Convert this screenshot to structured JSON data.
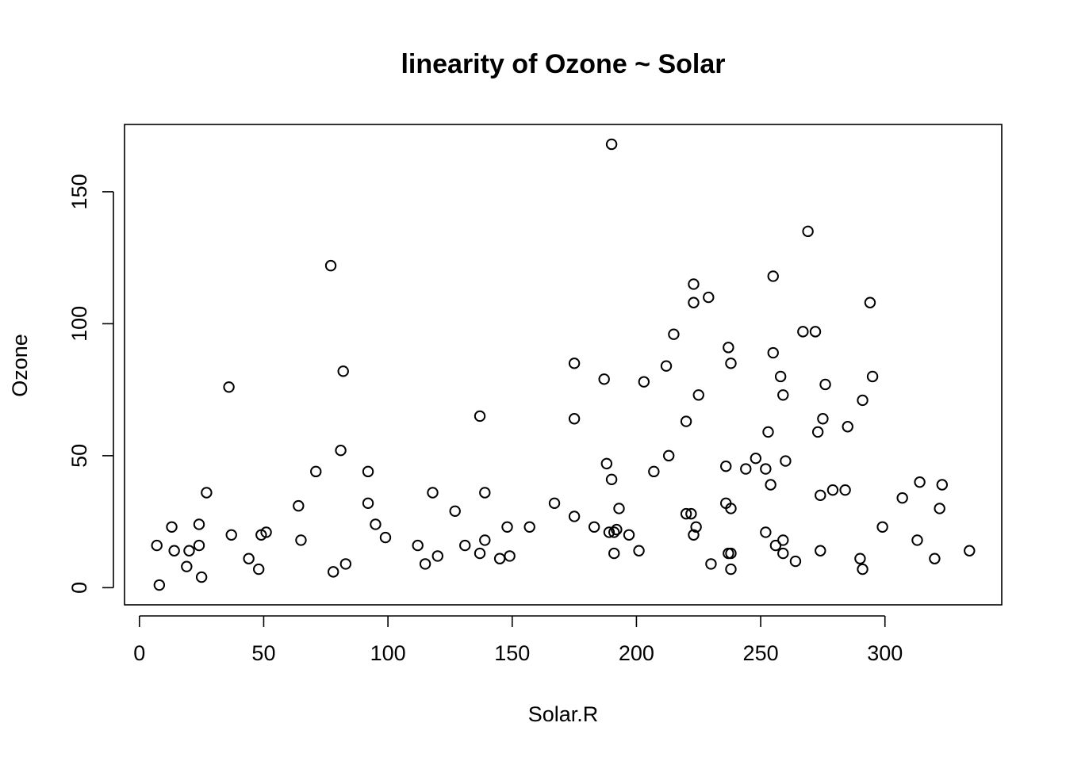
{
  "chart_data": {
    "type": "scatter",
    "title": "linearity of Ozone ~ Solar",
    "xlabel": "Solar.R",
    "ylabel": "Ozone",
    "xlim": [
      -6,
      347
    ],
    "ylim": [
      -6.5,
      175.5
    ],
    "xticks": [
      0,
      50,
      100,
      150,
      200,
      250,
      300
    ],
    "yticks": [
      0,
      50,
      100,
      150
    ],
    "grid": false,
    "marker": "open-circle",
    "points": [
      [
        190,
        41
      ],
      [
        118,
        36
      ],
      [
        149,
        12
      ],
      [
        313,
        18
      ],
      [
        299,
        23
      ],
      [
        99,
        19
      ],
      [
        19,
        8
      ],
      [
        256,
        16
      ],
      [
        290,
        11
      ],
      [
        274,
        14
      ],
      [
        65,
        18
      ],
      [
        334,
        14
      ],
      [
        307,
        34
      ],
      [
        78,
        6
      ],
      [
        322,
        30
      ],
      [
        44,
        11
      ],
      [
        8,
        1
      ],
      [
        320,
        11
      ],
      [
        25,
        4
      ],
      [
        92,
        32
      ],
      [
        13,
        23
      ],
      [
        252,
        45
      ],
      [
        223,
        115
      ],
      [
        279,
        37
      ],
      [
        127,
        29
      ],
      [
        291,
        71
      ],
      [
        323,
        39
      ],
      [
        148,
        23
      ],
      [
        191,
        21
      ],
      [
        284,
        37
      ],
      [
        37,
        20
      ],
      [
        120,
        12
      ],
      [
        137,
        13
      ],
      [
        269,
        135
      ],
      [
        248,
        49
      ],
      [
        236,
        32
      ],
      [
        175,
        64
      ],
      [
        314,
        40
      ],
      [
        276,
        77
      ],
      [
        267,
        97
      ],
      [
        272,
        97
      ],
      [
        175,
        85
      ],
      [
        139,
        36
      ],
      [
        264,
        10
      ],
      [
        175,
        27
      ],
      [
        291,
        7
      ],
      [
        48,
        7
      ],
      [
        260,
        48
      ],
      [
        274,
        35
      ],
      [
        285,
        61
      ],
      [
        187,
        79
      ],
      [
        220,
        63
      ],
      [
        7,
        16
      ],
      [
        258,
        80
      ],
      [
        295,
        80
      ],
      [
        294,
        108
      ],
      [
        223,
        20
      ],
      [
        81,
        52
      ],
      [
        82,
        82
      ],
      [
        213,
        50
      ],
      [
        275,
        64
      ],
      [
        253,
        59
      ],
      [
        254,
        39
      ],
      [
        83,
        9
      ],
      [
        24,
        16
      ],
      [
        77,
        122
      ],
      [
        255,
        89
      ],
      [
        229,
        110
      ],
      [
        207,
        44
      ],
      [
        222,
        28
      ],
      [
        137,
        65
      ],
      [
        192,
        22
      ],
      [
        273,
        59
      ],
      [
        157,
        23
      ],
      [
        64,
        31
      ],
      [
        71,
        44
      ],
      [
        51,
        21
      ],
      [
        115,
        9
      ],
      [
        244,
        45
      ],
      [
        190,
        168
      ],
      [
        259,
        73
      ],
      [
        36,
        76
      ],
      [
        255,
        118
      ],
      [
        212,
        84
      ],
      [
        238,
        85
      ],
      [
        215,
        96
      ],
      [
        203,
        78
      ],
      [
        225,
        73
      ],
      [
        237,
        91
      ],
      [
        188,
        47
      ],
      [
        167,
        32
      ],
      [
        197,
        20
      ],
      [
        183,
        23
      ],
      [
        189,
        21
      ],
      [
        95,
        24
      ],
      [
        92,
        44
      ],
      [
        252,
        21
      ],
      [
        220,
        28
      ],
      [
        230,
        9
      ],
      [
        259,
        13
      ],
      [
        236,
        46
      ],
      [
        259,
        18
      ],
      [
        238,
        13
      ],
      [
        24,
        24
      ],
      [
        112,
        16
      ],
      [
        237,
        13
      ],
      [
        224,
        23
      ],
      [
        27,
        36
      ],
      [
        238,
        7
      ],
      [
        201,
        14
      ],
      [
        238,
        30
      ],
      [
        14,
        14
      ],
      [
        139,
        18
      ],
      [
        49,
        20
      ],
      [
        20,
        14
      ],
      [
        193,
        30
      ],
      [
        145,
        11
      ],
      [
        191,
        13
      ],
      [
        131,
        16
      ],
      [
        223,
        108
      ]
    ]
  }
}
